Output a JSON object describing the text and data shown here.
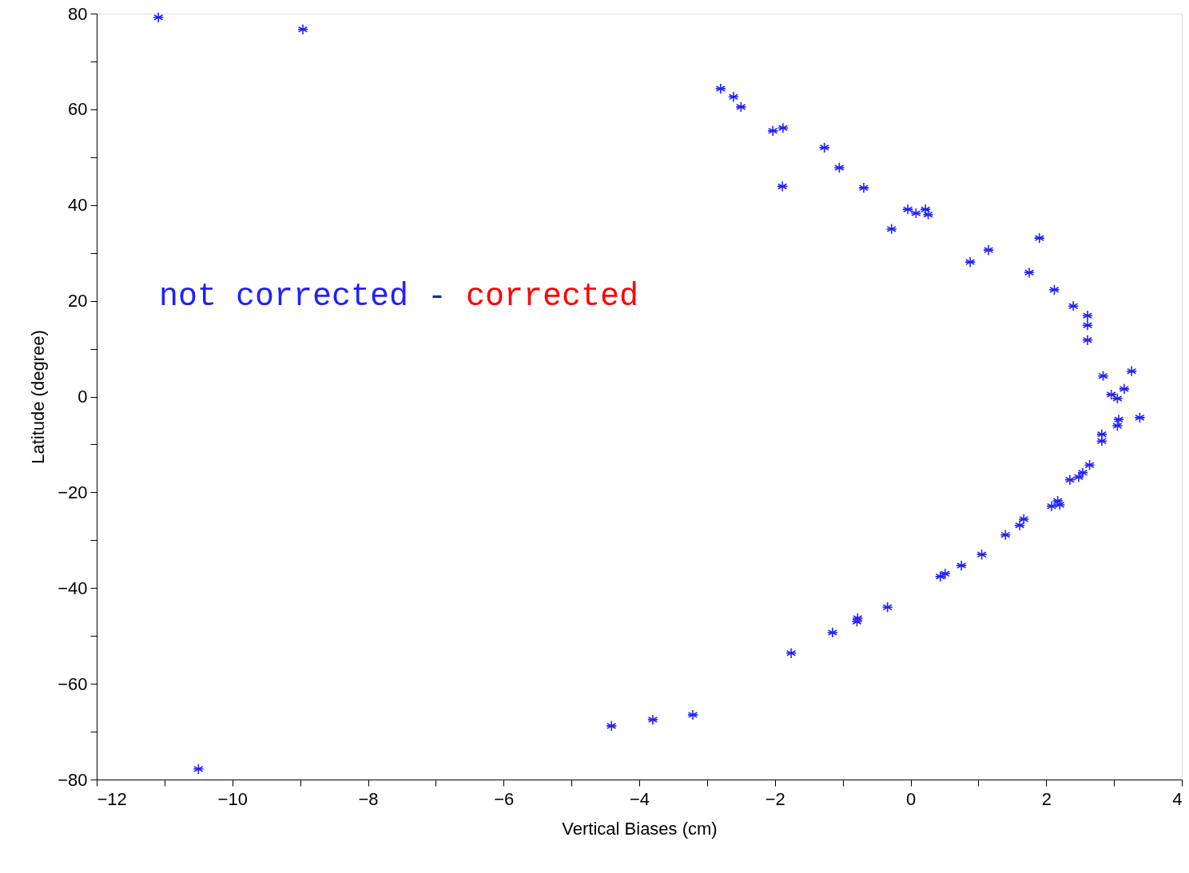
{
  "chart_data": {
    "type": "scatter",
    "xlabel": "Vertical Biases (cm)",
    "ylabel": "Latitude (degree)",
    "annotations": [
      "not corrected",
      "-",
      "corrected"
    ],
    "xlim": [
      -12,
      4
    ],
    "ylim": [
      -80,
      80
    ],
    "xticks": [
      -12,
      {
        "value": -11,
        "label": null
      },
      -10,
      {
        "value": -9,
        "label": null
      },
      -8,
      {
        "value": -7,
        "label": null
      },
      -6,
      {
        "value": -5,
        "label": null
      },
      -4,
      {
        "value": -3,
        "label": null
      },
      -2,
      {
        "value": -1,
        "label": null
      },
      0,
      {
        "value": 1,
        "label": null
      },
      2,
      {
        "value": 3,
        "label": null
      },
      4
    ],
    "yticks": [
      -80,
      {
        "value": -70,
        "label": null
      },
      -60,
      {
        "value": -50,
        "label": null
      },
      -40,
      {
        "value": -30,
        "label": null
      },
      -20,
      {
        "value": -10,
        "label": null
      },
      0,
      {
        "value": 10,
        "label": null
      },
      20,
      {
        "value": 30,
        "label": null
      },
      40,
      {
        "value": 50,
        "label": null
      },
      60,
      {
        "value": 70,
        "label": null
      },
      80
    ],
    "grid": false,
    "marker": "cross",
    "series": [
      {
        "color": "#2020ff",
        "x": [
          -11.09,
          -8.96,
          -10.5,
          -4.41,
          -3.8,
          -3.21,
          -2.8,
          -2.61,
          -2.5,
          -2.03,
          -1.88,
          -1.89,
          -1.27,
          -1.05,
          -0.69,
          -0.28,
          -0.04,
          0.08,
          0.22,
          0.26,
          0.88,
          1.15,
          1.9,
          1.75,
          2.12,
          2.4,
          2.61,
          2.61,
          2.61,
          2.84,
          3.26,
          2.96,
          3.05,
          3.15,
          3.38,
          3.07,
          3.05,
          2.82,
          2.82,
          2.64,
          2.54,
          2.48,
          2.35,
          2.17,
          2.15,
          2.08,
          2.2,
          1.67,
          1.61,
          1.4,
          1.05,
          0.75,
          0.51,
          0.44,
          -0.34,
          -0.78,
          -0.79,
          -1.15,
          -1.76
        ],
        "values": [
          79.2,
          76.7,
          -77.8,
          -68.8,
          -67.5,
          -66.5,
          64.3,
          62.6,
          60.5,
          55.5,
          56.1,
          43.9,
          52.0,
          47.8,
          43.6,
          35.0,
          39.1,
          38.3,
          39.1,
          38.0,
          28.1,
          30.6,
          33.1,
          25.9,
          22.3,
          18.9,
          16.9,
          14.9,
          11.8,
          4.3,
          5.3,
          0.4,
          -0.4,
          1.6,
          -4.4,
          -4.8,
          -6.1,
          -7.9,
          -9.3,
          -14.3,
          -15.9,
          -16.8,
          -17.4,
          -21.8,
          null,
          -22.9,
          -22.6,
          -25.6,
          -26.9,
          -28.9,
          -33.0,
          -35.3,
          -37.0,
          -37.6,
          -44.0,
          -46.3,
          -47.0,
          -49.3,
          -53.6
        ]
      }
    ]
  }
}
